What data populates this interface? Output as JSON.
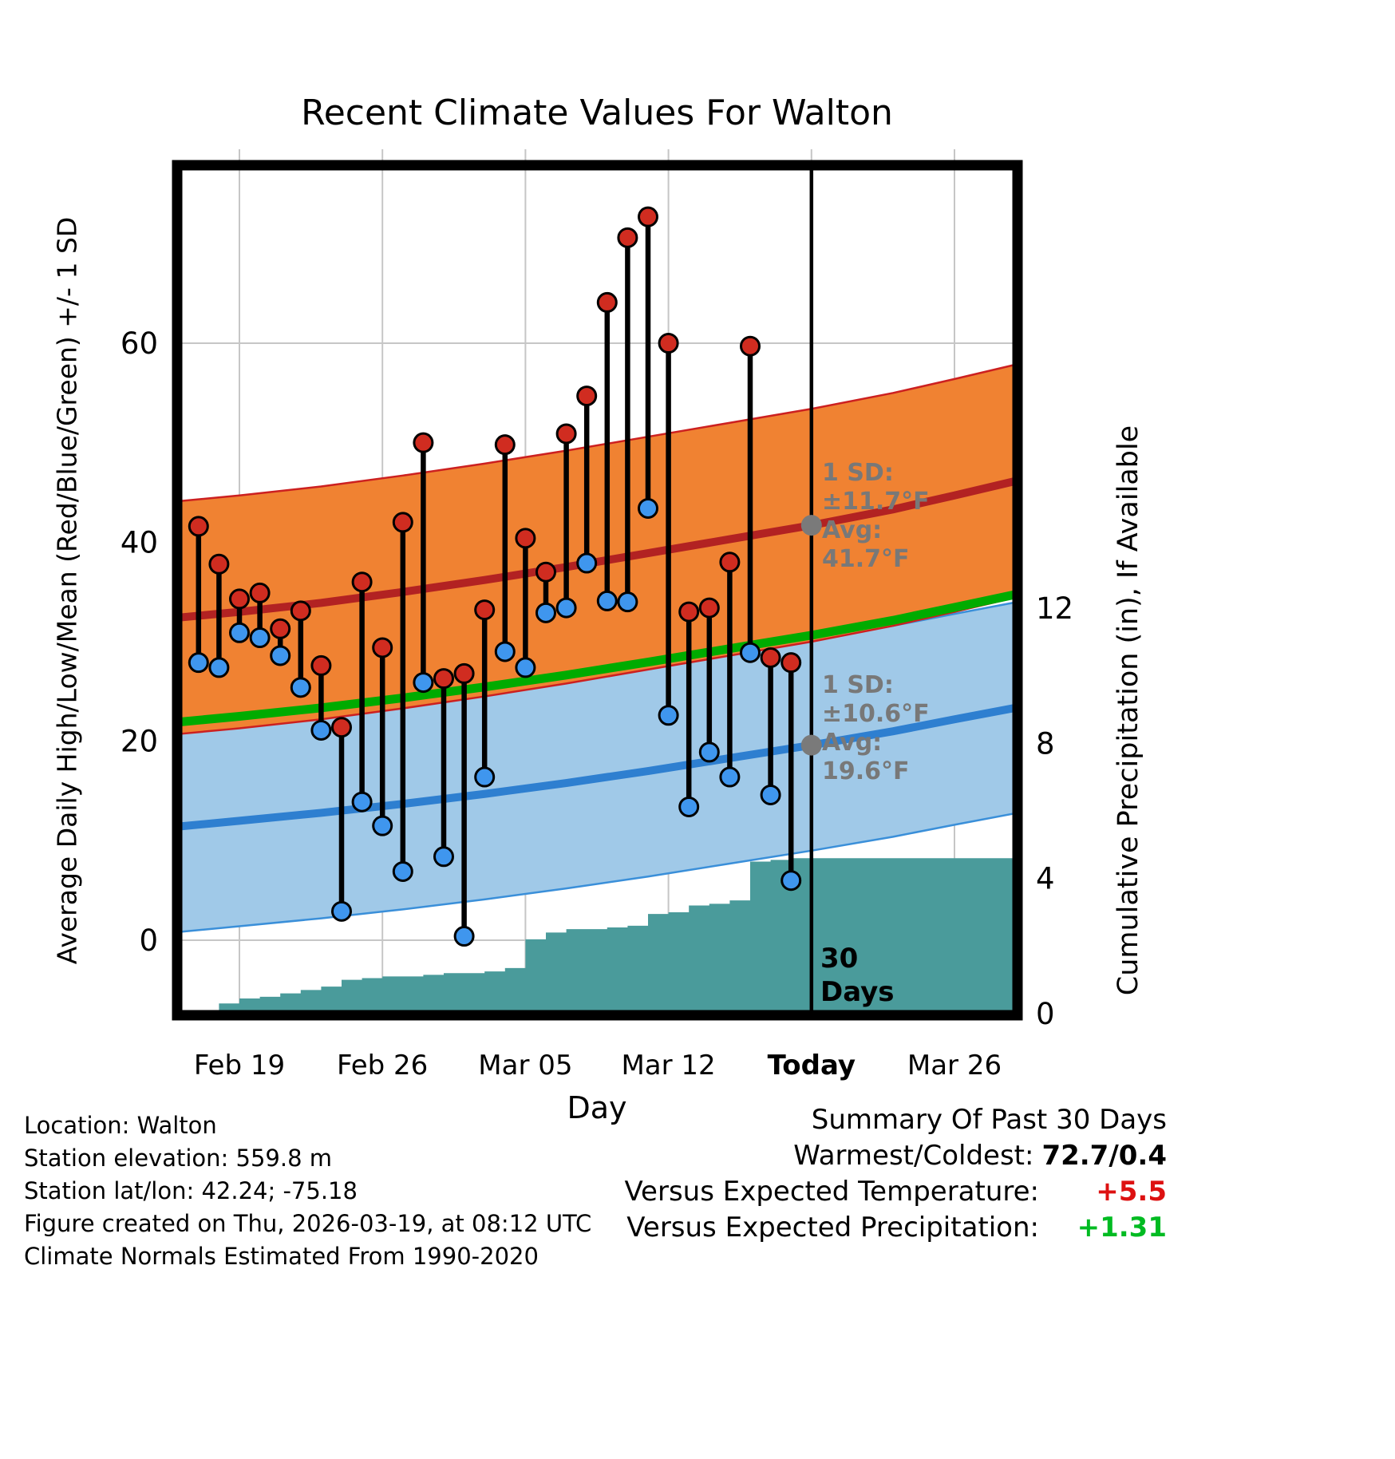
{
  "title": "Recent Climate Values For Walton",
  "axes": {
    "left_label": "Average Daily High/Low/Mean (Red/Blue/Green) +/- 1 SD",
    "right_label": "Cumulative Precipitation (in), If Available",
    "x_label": "Day"
  },
  "chart_data": {
    "type": "line",
    "title": "Recent Climate Values For Walton",
    "xlabel": "Day",
    "ylabel_left": "Average Daily High/Low/Mean (Red/Blue/Green) +/- 1 SD",
    "ylabel_right": "Cumulative Precipitation (in), If Available",
    "x_axis": {
      "day_min": -3.05,
      "day_max": 38.1,
      "ticks": [
        {
          "day": 0,
          "label": "Feb 19",
          "bold": false
        },
        {
          "day": 7,
          "label": "Feb 26",
          "bold": false
        },
        {
          "day": 14,
          "label": "Mar 05",
          "bold": false
        },
        {
          "day": 21,
          "label": "Mar 12",
          "bold": false
        },
        {
          "day": 28,
          "label": "Today",
          "bold": true
        },
        {
          "day": 35,
          "label": "Mar 26",
          "bold": false
        }
      ]
    },
    "y_left": {
      "ticks": [
        0,
        20,
        40,
        60
      ],
      "unit": "°F"
    },
    "y_right": {
      "ticks": [
        0,
        4,
        8,
        12
      ],
      "unit": "in"
    },
    "daily": {
      "days": [
        -2,
        -1,
        0,
        1,
        2,
        3,
        4,
        5,
        6,
        7,
        8,
        9,
        10,
        11,
        12,
        13,
        14,
        15,
        16,
        17,
        18,
        19,
        20,
        21,
        22,
        23,
        24,
        25,
        26,
        27
      ],
      "high": [
        41.6,
        37.8,
        34.3,
        34.9,
        31.3,
        33.1,
        27.6,
        21.4,
        36.0,
        29.4,
        42.0,
        50.0,
        26.3,
        26.8,
        33.2,
        49.8,
        40.4,
        37.0,
        50.9,
        54.7,
        64.1,
        70.6,
        72.7,
        60.0,
        33.0,
        33.4,
        38.0,
        59.7,
        28.4,
        27.9
      ],
      "low": [
        27.9,
        27.4,
        30.9,
        30.4,
        28.6,
        25.4,
        21.1,
        2.9,
        13.9,
        11.5,
        6.9,
        25.9,
        8.4,
        0.4,
        16.4,
        29.0,
        27.4,
        32.9,
        33.4,
        37.9,
        34.1,
        34.0,
        43.4,
        22.6,
        13.4,
        18.9,
        16.4,
        28.9,
        14.6,
        6.0
      ]
    },
    "normals": {
      "days": [
        -3.1,
        0,
        4,
        8,
        12,
        16,
        20,
        24,
        28,
        32,
        35,
        38.1
      ],
      "high_mean": [
        32.4,
        33.0,
        33.9,
        35.0,
        36.2,
        37.5,
        38.9,
        40.3,
        41.7,
        43.3,
        44.7,
        46.2
      ],
      "low_mean": [
        11.4,
        12.0,
        12.8,
        13.7,
        14.7,
        15.8,
        17.0,
        18.3,
        19.6,
        21.0,
        22.2,
        23.4
      ],
      "sd_high": 11.7,
      "sd_low": 10.6
    },
    "precip_cumulative": {
      "days": [
        -2,
        -1,
        0,
        1,
        2,
        3,
        4,
        5,
        6,
        7,
        8,
        9,
        10,
        11,
        12,
        13,
        14,
        15,
        16,
        17,
        18,
        19,
        20,
        21,
        22,
        23,
        24,
        25,
        26,
        27,
        28
      ],
      "values": [
        0.05,
        0.3,
        0.45,
        0.5,
        0.6,
        0.7,
        0.8,
        1.0,
        1.05,
        1.1,
        1.1,
        1.15,
        1.2,
        1.2,
        1.25,
        1.35,
        2.2,
        2.4,
        2.5,
        2.5,
        2.55,
        2.6,
        2.95,
        3.0,
        3.2,
        3.25,
        3.35,
        4.5,
        4.55,
        4.6,
        4.6
      ]
    },
    "today_day": 28
  },
  "annotations": {
    "high": {
      "lines": [
        "1 SD:",
        "±11.7°F",
        "Avg:",
        "41.7°F"
      ],
      "day": 28,
      "value": 41.7
    },
    "low": {
      "lines": [
        "1 SD:",
        "±10.6°F",
        "Avg:",
        "19.6°F"
      ],
      "day": 28,
      "value": 19.6
    },
    "today_label_lines": [
      "30",
      "Days"
    ]
  },
  "footer": {
    "left_lines": [
      "Location: Walton",
      "Station elevation: 559.8 m",
      "Station lat/lon: 42.24; -75.18",
      "Figure created on Thu, 2026-03-19, at 08:12 UTC",
      "Climate Normals Estimated From 1990-2020"
    ],
    "summary": {
      "title": "Summary Of Past 30 Days",
      "rows": [
        {
          "label": "Warmest/Coldest:",
          "value": "72.7/0.4",
          "value_color": "#000000"
        },
        {
          "label": "Versus Expected Temperature:",
          "value": "+5.5",
          "value_color": "#DD1111"
        },
        {
          "label": "Versus Expected Precipitation:",
          "value": "+1.31",
          "value_color": "#00BB22"
        }
      ]
    }
  },
  "colors": {
    "high_band": "#F08232",
    "high_band_edge": "#CC2020",
    "high_mean": "#B22222",
    "low_band": "#A0C9E8",
    "low_band_edge": "#3A8FD9",
    "low_mean": "#2E7FD0",
    "mean_green": "#00AB00",
    "precip_fill": "#4A9B9B",
    "bar": "#000000",
    "high_dot": "#D02C20",
    "low_dot": "#3F96EE",
    "marker_gray": "#7A7A7A",
    "annotation_gray": "#787878",
    "grid": "#C6C6C6",
    "frame": "#000000"
  }
}
